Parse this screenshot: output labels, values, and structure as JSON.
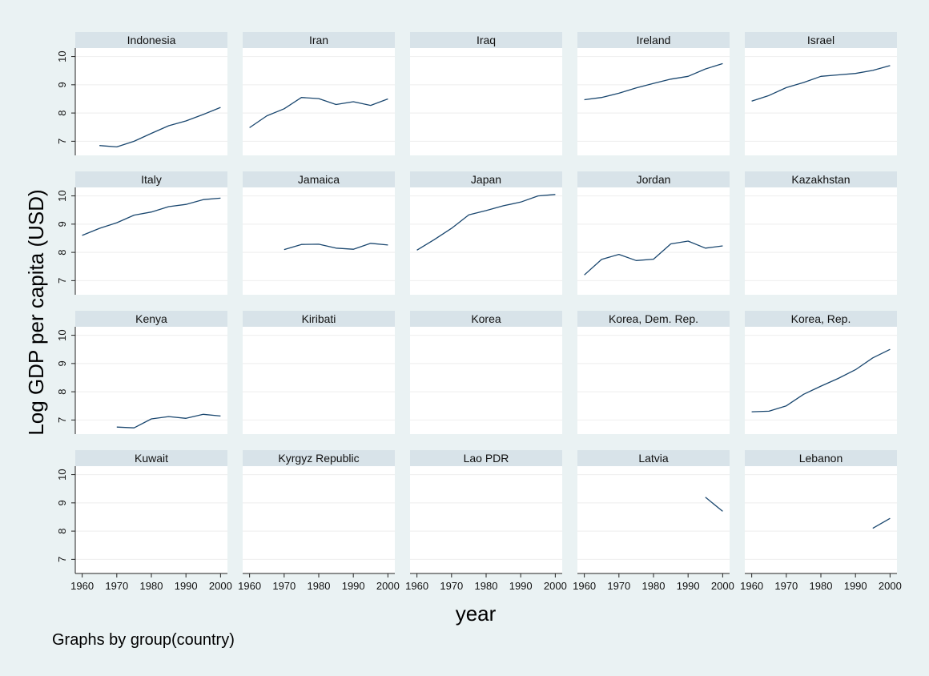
{
  "chart_data": {
    "type": "line",
    "title": "",
    "xlabel": "year",
    "ylabel": "Log GDP per capita (USD)",
    "note": "Graphs by group(country)",
    "x_ticks": [
      1960,
      1970,
      1980,
      1990,
      2000
    ],
    "y_ticks": [
      7,
      8,
      9,
      10
    ],
    "xlim": [
      1958,
      2002
    ],
    "ylim": [
      6.5,
      10.3
    ],
    "colors": {
      "background": "#eaf2f3",
      "plot": "#ffffff",
      "header": "#d8e3e9",
      "line": "#1a476f",
      "grid": "#eeeeee"
    },
    "panels": [
      {
        "name": "Indonesia",
        "x": [
          1965,
          1970,
          1975,
          1980,
          1985,
          1990,
          1995,
          2000
        ],
        "y": [
          6.85,
          6.8,
          7.0,
          7.28,
          7.55,
          7.72,
          7.95,
          8.2
        ]
      },
      {
        "name": "Iran",
        "x": [
          1960,
          1965,
          1970,
          1975,
          1980,
          1985,
          1990,
          1995,
          2000
        ],
        "y": [
          7.48,
          7.9,
          8.15,
          8.55,
          8.51,
          8.3,
          8.4,
          8.27,
          8.5
        ]
      },
      {
        "name": "Iraq",
        "x": [],
        "y": []
      },
      {
        "name": "Ireland",
        "x": [
          1960,
          1965,
          1970,
          1975,
          1980,
          1985,
          1990,
          1995,
          2000
        ],
        "y": [
          8.47,
          8.55,
          8.7,
          8.89,
          9.05,
          9.2,
          9.3,
          9.56,
          9.75
        ]
      },
      {
        "name": "Israel",
        "x": [
          1960,
          1965,
          1970,
          1975,
          1980,
          1985,
          1990,
          1995,
          2000
        ],
        "y": [
          8.42,
          8.62,
          8.9,
          9.08,
          9.3,
          9.35,
          9.4,
          9.51,
          9.68
        ]
      },
      {
        "name": "Italy",
        "x": [
          1960,
          1965,
          1970,
          1975,
          1980,
          1985,
          1990,
          1995,
          2000
        ],
        "y": [
          8.6,
          8.85,
          9.05,
          9.32,
          9.43,
          9.62,
          9.7,
          9.87,
          9.92
        ]
      },
      {
        "name": "Jamaica",
        "x": [
          1970,
          1975,
          1980,
          1985,
          1990,
          1995,
          2000
        ],
        "y": [
          8.1,
          8.28,
          8.29,
          8.15,
          8.11,
          8.32,
          8.26
        ]
      },
      {
        "name": "Japan",
        "x": [
          1960,
          1965,
          1970,
          1975,
          1980,
          1985,
          1990,
          1995,
          2000
        ],
        "y": [
          8.08,
          8.45,
          8.85,
          9.33,
          9.48,
          9.65,
          9.78,
          10.0,
          10.05
        ]
      },
      {
        "name": "Jordan",
        "x": [
          1960,
          1965,
          1970,
          1975,
          1980,
          1985,
          1990,
          1995,
          2000
        ],
        "y": [
          7.2,
          7.75,
          7.93,
          7.71,
          7.76,
          8.3,
          8.4,
          8.15,
          8.23
        ]
      },
      {
        "name": "Kazakhstan",
        "x": [],
        "y": []
      },
      {
        "name": "Kenya",
        "x": [
          1970,
          1975,
          1980,
          1985,
          1990,
          1995,
          2000
        ],
        "y": [
          6.75,
          6.72,
          7.04,
          7.12,
          7.06,
          7.2,
          7.14
        ]
      },
      {
        "name": "Kiribati",
        "x": [],
        "y": []
      },
      {
        "name": "Korea",
        "x": [],
        "y": []
      },
      {
        "name": "Korea, Dem. Rep.",
        "x": [],
        "y": []
      },
      {
        "name": "Korea, Rep.",
        "x": [
          1960,
          1965,
          1970,
          1975,
          1980,
          1985,
          1990,
          1995,
          2000
        ],
        "y": [
          7.29,
          7.31,
          7.5,
          7.91,
          8.2,
          8.47,
          8.78,
          9.2,
          9.5
        ]
      },
      {
        "name": "Kuwait",
        "x": [],
        "y": []
      },
      {
        "name": "Kyrgyz Republic",
        "x": [],
        "y": []
      },
      {
        "name": "Lao PDR",
        "x": [],
        "y": []
      },
      {
        "name": "Latvia",
        "x": [
          1995,
          2000
        ],
        "y": [
          9.2,
          8.7
        ]
      },
      {
        "name": "Lebanon",
        "x": [
          1995,
          2000
        ],
        "y": [
          8.1,
          8.45
        ]
      }
    ]
  }
}
